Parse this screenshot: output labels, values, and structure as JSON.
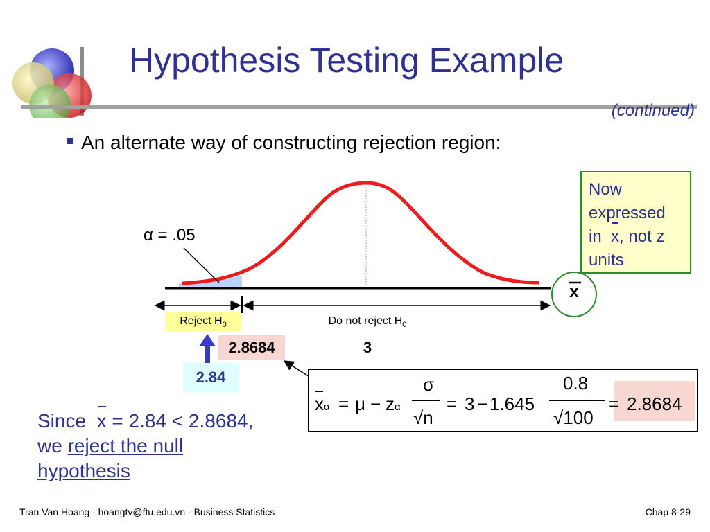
{
  "title": "Hypothesis Testing Example",
  "subtitle": "(continued)",
  "bullet": "An alternate way of constructing rejection region:",
  "note": {
    "line1": "Now",
    "line2": "expressed",
    "line3_prefix": "in ",
    "line3_var": "x",
    "line3_suffix": ", not z",
    "line4": "units"
  },
  "axis_variable": "x",
  "alpha_label": "α = .05",
  "reject_label": "Reject H",
  "reject_sub": "0",
  "no_reject_label": "Do not reject H",
  "no_reject_sub": "0",
  "critical_value": "2.8684",
  "mean_value": "3",
  "sample_mean": "2.84",
  "formula": {
    "xbar": "x",
    "alpha_sub": "α",
    "eq1": "=",
    "mu": "μ",
    "minus": "−",
    "z": "z",
    "z_sub": "α",
    "sigma": "σ",
    "sqrt": "√",
    "n": "n",
    "eq2": "=",
    "mean": "3",
    "minus2": "−",
    "zval": "1.645",
    "num": "0.8",
    "den": "100",
    "eq3": "=",
    "result": "2.8684"
  },
  "conclusion": {
    "since": "Since",
    "xbar": "x",
    "comparison": "= 2.84 < 2.8684,",
    "we": "we",
    "reject_text": "reject the null",
    "hypothesis": "hypothesis"
  },
  "footer_left": "Tran Van Hoang - hoangtv@ftu.edu.vn - Business Statistics",
  "footer_right": "Chap 8-29",
  "colors": {
    "title": "#2e3192",
    "curve": "#ee1c1c",
    "note_border": "#2e8b2e"
  },
  "icons": [
    "overlapping-circles-logo-icon",
    "up-arrow-icon"
  ]
}
